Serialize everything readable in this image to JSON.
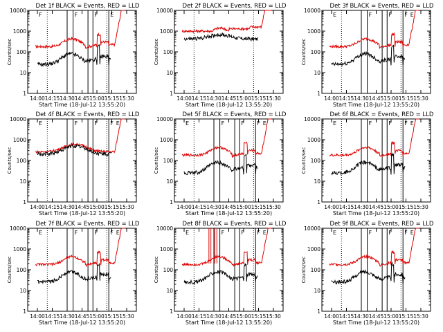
{
  "colors": {
    "events": "#000000",
    "lld": "#dd0000",
    "background": "#ffffff",
    "axis": "#000000"
  },
  "chart_data": [
    {
      "type": "line",
      "detector": "1f",
      "title": "Det 1f BLACK = Events, RED = LLD",
      "xlabel": "Start Time (18-Jul-12 13:55:20)",
      "ylabel": "Counts/sec",
      "ylim": [
        1,
        10000
      ],
      "x_ticks": [
        "14:00",
        "14:15",
        "14:30",
        "14:45",
        "15:00",
        "15:15",
        "15:30"
      ],
      "y_ticks": [
        "1",
        "10",
        "100",
        "1000",
        "10000"
      ],
      "series": [
        {
          "name": "Events",
          "color": "black"
        },
        {
          "name": "LLD",
          "color": "red"
        }
      ],
      "markers": [
        "F",
        "F",
        "F",
        "E"
      ]
    },
    {
      "type": "line",
      "detector": "2f",
      "title": "Det 2f BLACK = Events, RED = LLD",
      "xlabel": "Start Time (18-Jul-12 13:55:20)",
      "ylabel": "Counts/sec",
      "ylim": [
        1,
        10000
      ],
      "x_ticks": [
        "14:00",
        "14:15",
        "14:30",
        "14:45",
        "15:00",
        "15:15",
        "15:30"
      ],
      "y_ticks": [
        "1",
        "10",
        "100",
        "1000",
        "10000"
      ],
      "series": [
        {
          "name": "Events",
          "color": "black"
        },
        {
          "name": "LLD",
          "color": "red"
        }
      ],
      "markers": []
    },
    {
      "type": "line",
      "detector": "3f",
      "title": "Det 3f BLACK = Events, RED = LLD",
      "xlabel": "Start Time (18-Jul-12 13:55:20)",
      "ylabel": "Counts/sec",
      "ylim": [
        1,
        10000
      ],
      "x_ticks": [
        "14:00",
        "14:15",
        "14:30",
        "14:45",
        "15:00",
        "15:15",
        "15:30"
      ],
      "y_ticks": [
        "1",
        "10",
        "100",
        "1000",
        "10000"
      ],
      "series": [
        {
          "name": "Events",
          "color": "black"
        },
        {
          "name": "LLD",
          "color": "red"
        }
      ],
      "markers": [
        "E",
        "F",
        "F",
        "F",
        "E"
      ]
    },
    {
      "type": "line",
      "detector": "4f",
      "title": "Det 4f BLACK = Events, RED = LLD",
      "xlabel": "Start Time (18-Jul-12 13:55:20)",
      "ylabel": "Counts/sec",
      "ylim": [
        1,
        10000
      ],
      "x_ticks": [
        "14:00",
        "14:15",
        "14:30",
        "14:45",
        "15:00",
        "15:15",
        "15:30"
      ],
      "y_ticks": [
        "1",
        "10",
        "100",
        "1000",
        "10000"
      ],
      "series": [
        {
          "name": "Events",
          "color": "black"
        },
        {
          "name": "LLD",
          "color": "red"
        }
      ],
      "markers": [
        "E",
        "F",
        "F",
        "F",
        "E"
      ]
    },
    {
      "type": "line",
      "detector": "5f",
      "title": "Det 5f BLACK = Events, RED = LLD",
      "xlabel": "Start Time (18-Jul-12 13:55:20)",
      "ylabel": "Counts/sec",
      "ylim": [
        1,
        10000
      ],
      "x_ticks": [
        "14:00",
        "14:15",
        "14:30",
        "14:45",
        "15:00",
        "15:15",
        "15:30"
      ],
      "y_ticks": [
        "1",
        "10",
        "100",
        "1000",
        "10000"
      ],
      "series": [
        {
          "name": "Events",
          "color": "black"
        },
        {
          "name": "LLD",
          "color": "red"
        }
      ],
      "markers": [
        "E",
        "F",
        "F",
        "F",
        "E"
      ]
    },
    {
      "type": "line",
      "detector": "6f",
      "title": "Det 6f BLACK = Events, RED = LLD",
      "xlabel": "Start Time (18-Jul-12 13:55:20)",
      "ylabel": "Counts/sec",
      "ylim": [
        1,
        10000
      ],
      "x_ticks": [
        "14:00",
        "14:15",
        "14:30",
        "14:45",
        "15:00",
        "15:15",
        "15:30"
      ],
      "y_ticks": [
        "1",
        "10",
        "100",
        "1000",
        "10000"
      ],
      "series": [
        {
          "name": "Events",
          "color": "black"
        },
        {
          "name": "LLD",
          "color": "red"
        }
      ],
      "markers": [
        "E",
        "F",
        "F",
        "F",
        "E"
      ]
    },
    {
      "type": "line",
      "detector": "7f",
      "title": "Det 7f BLACK = Events, RED = LLD",
      "xlabel": "Start Time (18-Jul-12 13:55:20)",
      "ylabel": "Counts/sec",
      "ylim": [
        1,
        10000
      ],
      "x_ticks": [
        "14:00",
        "14:15",
        "14:30",
        "14:45",
        "15:00",
        "15:15",
        "15:30"
      ],
      "y_ticks": [
        "1",
        "10",
        "100",
        "1000",
        "10000"
      ],
      "series": [
        {
          "name": "Events",
          "color": "black"
        },
        {
          "name": "LLD",
          "color": "red"
        }
      ],
      "markers": [
        "E",
        "F",
        "F",
        "F",
        "E"
      ]
    },
    {
      "type": "line",
      "detector": "8f",
      "title": "Det 8f BLACK = Events, RED = LLD",
      "xlabel": "Start Time (18-Jul-12 13:55:20)",
      "ylabel": "Counts/sec",
      "ylim": [
        1,
        10000
      ],
      "x_ticks": [
        "14:00",
        "14:15",
        "14:30",
        "14:45",
        "15:00",
        "15:15",
        "15:30"
      ],
      "y_ticks": [
        "1",
        "10",
        "100",
        "1000",
        "10000"
      ],
      "series": [
        {
          "name": "Events",
          "color": "black"
        },
        {
          "name": "LLD",
          "color": "red"
        }
      ],
      "markers": [
        "E",
        "F",
        "F",
        "F",
        "E"
      ]
    },
    {
      "type": "line",
      "detector": "9f",
      "title": "Det 9f BLACK = Events, RED = LLD",
      "xlabel": "Start Time (18-Jul-12 13:55:20)",
      "ylabel": "Counts/sec",
      "ylim": [
        1,
        10000
      ],
      "x_ticks": [
        "14:00",
        "14:15",
        "14:30",
        "14:45",
        "15:00",
        "15:15",
        "15:30"
      ],
      "y_ticks": [
        "1",
        "10",
        "100",
        "1000",
        "10000"
      ],
      "series": [
        {
          "name": "Events",
          "color": "black"
        },
        {
          "name": "LLD",
          "color": "red"
        }
      ],
      "markers": [
        "E",
        "F",
        "F",
        "F",
        "E"
      ]
    }
  ]
}
